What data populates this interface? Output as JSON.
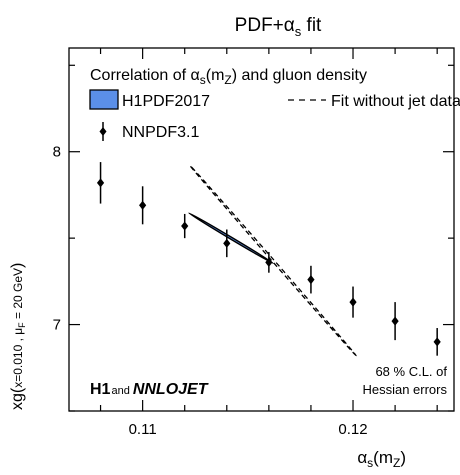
{
  "chart_data": {
    "type": "scatter",
    "title": "PDF+α_s fit",
    "title_main": "PDF+α",
    "title_sub": "s",
    "title_end": " fit",
    "xlabel_main": "α",
    "xlabel_sub": "s",
    "xlabel_paren": "(m",
    "xlabel_sub2": "Z",
    "xlabel_close": ")",
    "ylabel_main": "xg(",
    "ylabel_x": "x=0.010 , μ",
    "ylabel_xsub": "F",
    "ylabel_end": " = 20 GeV",
    "ylabel_close": ")",
    "xlim": [
      0.1065,
      0.1248
    ],
    "ylim": [
      6.5,
      8.6
    ],
    "xticks": [
      0.11,
      0.12
    ],
    "xtick_labels": [
      "0.11",
      "0.12"
    ],
    "xminor_step": 0.002,
    "yticks": [
      7,
      8
    ],
    "ytick_labels": [
      "7",
      "8"
    ],
    "yminor_step": 0.5,
    "grid": false,
    "legend_placement": "top-left",
    "legend": {
      "header_main": "Correlation of α",
      "header_sub": "s",
      "header_paren": "(m",
      "header_sub2": "Z",
      "header_end": ") and gluon density",
      "h1pdf_label": "H1PDF2017",
      "fit_label": "Fit without jet data",
      "nnpdf_label": "NNPDF3.1"
    },
    "series": [
      {
        "name": "NNPDF3.1",
        "x": [
          0.108,
          0.11,
          0.112,
          0.114,
          0.116,
          0.118,
          0.12,
          0.122,
          0.124
        ],
        "y": [
          7.82,
          7.69,
          7.57,
          7.47,
          7.36,
          7.26,
          7.13,
          7.02,
          6.9
        ],
        "yerr_up": [
          0.12,
          0.11,
          0.07,
          0.08,
          0.06,
          0.08,
          0.09,
          0.11,
          0.08
        ],
        "yerr_down": [
          0.12,
          0.11,
          0.07,
          0.08,
          0.06,
          0.08,
          0.09,
          0.11,
          0.08
        ]
      }
    ],
    "ellipses": [
      {
        "name": "H1PDF2017",
        "center": [
          0.1142,
          7.5
        ],
        "extreme_x": [
          0.1122,
          0.1162
        ],
        "extreme_y": [
          7.37,
          7.66
        ],
        "fill": "#5b8fe8",
        "stroke": "#000000",
        "style": "filled"
      },
      {
        "name": "Fit without jet data",
        "center": [
          0.1162,
          7.37
        ],
        "extreme_x": [
          0.1123,
          0.1202
        ],
        "extreme_y": [
          6.82,
          7.92
        ],
        "stroke": "#000000",
        "style": "dashed"
      }
    ],
    "annotations": {
      "cl_line1": "68 % C.L. of",
      "cl_line2": "Hessian errors",
      "h1": "H1",
      "and": "and",
      "nnlojet": "NNLOJET"
    },
    "colors": {
      "h1pdf_fill": "#5b8fe8",
      "marker": "#000000"
    }
  }
}
